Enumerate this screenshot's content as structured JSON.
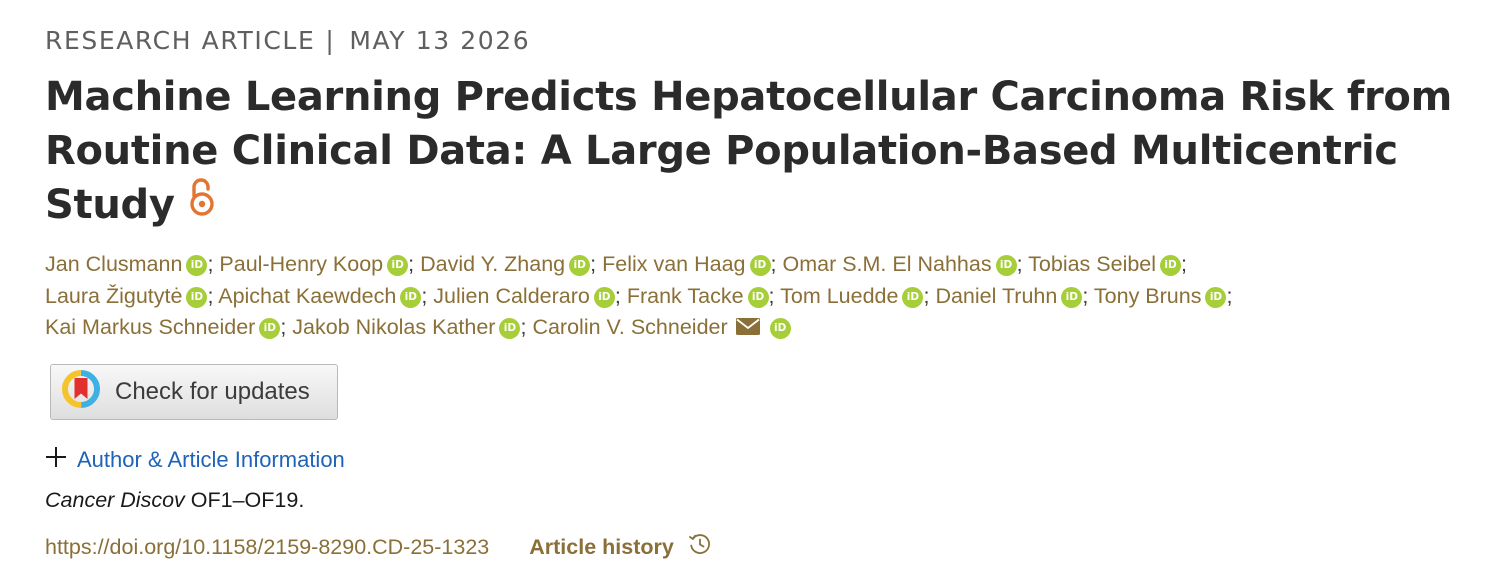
{
  "header": {
    "article_type": "RESEARCH ARTICLE",
    "separator": "|",
    "date": "MAY 13 2026"
  },
  "title": "Machine Learning Predicts Hepatocellular Carcinoma Risk from Routine Clinical Data: A Large Population-Based Multicentric Study",
  "icons": {
    "open_access": "open-access-lock-icon",
    "orcid": "orcid-icon",
    "email": "envelope-icon",
    "updates": "crossmark-icon",
    "expand": "plus-icon",
    "history": "clock-history-icon"
  },
  "orcid_text": "iD",
  "separator_char": ";",
  "authors": [
    "Jan Clusmann",
    "Paul-Henry Koop",
    "David Y. Zhang",
    "Felix van Haag",
    "Omar S.M. El Nahhas",
    "Tobias Seibel",
    "Laura Žigutytė",
    "Apichat Kaewdech",
    "Julien Calderaro",
    "Frank Tacke",
    "Tom Luedde",
    "Daniel Truhn",
    "Tony Bruns",
    "Kai Markus Schneider",
    "Jakob Nikolas Kather",
    "Carolin V. Schneider"
  ],
  "check_updates_label": "Check for updates",
  "author_info_label": "Author & Article Information",
  "citation": {
    "journal": "Cancer Discov",
    "pages": "OF1–OF19."
  },
  "doi": "https://doi.org/10.1158/2159-8290.CD-25-1323",
  "article_history_label": "Article history",
  "colors": {
    "author_gold": "#8a7038",
    "link_blue": "#1e63b7",
    "orcid_green": "#a6ce39",
    "oa_orange": "#e37533",
    "title": "#2b2b2b"
  }
}
